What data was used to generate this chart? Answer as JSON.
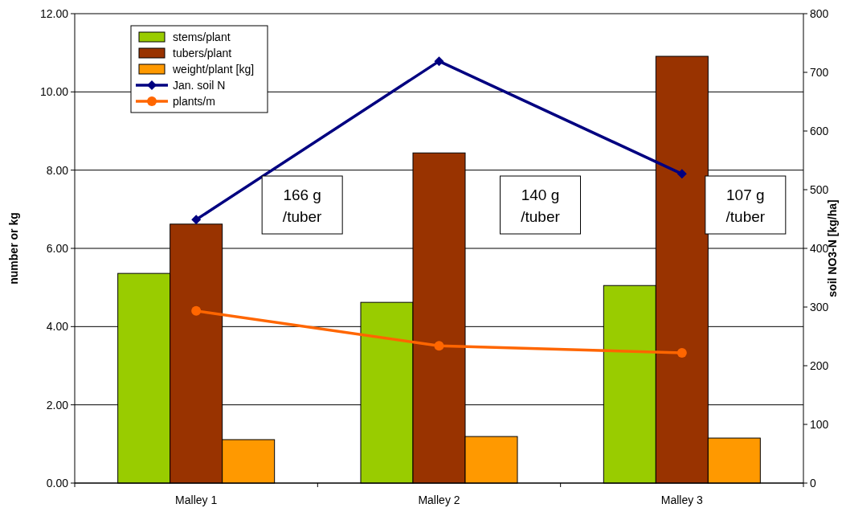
{
  "chart_data": {
    "type": "bar",
    "categories": [
      "Malley 1",
      "Malley 2",
      "Malley 3"
    ],
    "ylabel": "number or kg",
    "y2label": "soil NO3-N [kg/ha]",
    "series": [
      {
        "name": "stems/plant",
        "color": "#99cc00",
        "values": [
          5.36,
          4.62,
          5.05
        ]
      },
      {
        "name": "tubers/plant",
        "color": "#993300",
        "values": [
          6.62,
          8.44,
          10.91
        ]
      },
      {
        "name": "weight/plant [kg]",
        "color": "#ff9900",
        "values": [
          1.11,
          1.19,
          1.15
        ]
      },
      {
        "name": "Jan. soil N",
        "type": "line",
        "axis": "y2",
        "color": "#000080",
        "marker": "diamond",
        "values": [
          449,
          719,
          527
        ]
      },
      {
        "name": "plants/m",
        "type": "line",
        "color": "#ff6600",
        "marker": "circle",
        "values": [
          4.4,
          3.51,
          3.33
        ]
      }
    ],
    "ylim": [
      0,
      12
    ],
    "yticks": [
      {
        "value": 0,
        "label": "0.00"
      },
      {
        "value": 2,
        "label": "2.00"
      },
      {
        "value": 4,
        "label": "4.00"
      },
      {
        "value": 6,
        "label": "6.00"
      },
      {
        "value": 8,
        "label": "8.00"
      },
      {
        "value": 10,
        "label": "10.00"
      },
      {
        "value": 12,
        "label": "12.00"
      }
    ],
    "y2lim": [
      0,
      800
    ],
    "y2ticks": [
      0,
      100,
      200,
      300,
      400,
      500,
      600,
      700,
      800
    ],
    "grid": "y",
    "legend": "top left",
    "annotations": [
      "166 g\n/tuber",
      "140 g\n/tuber",
      "107 g\n/tuber"
    ]
  }
}
